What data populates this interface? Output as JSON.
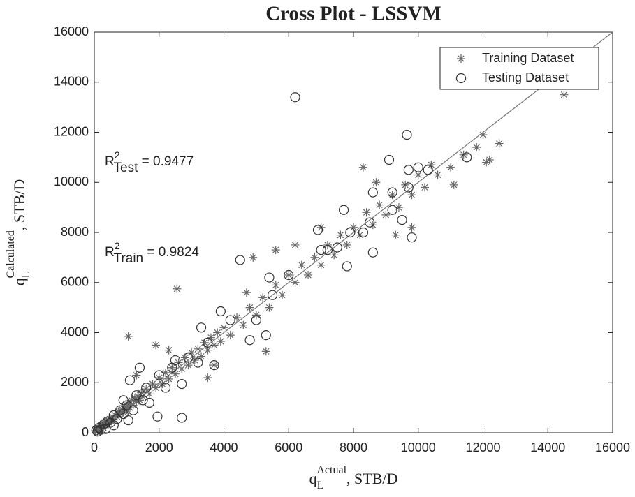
{
  "chart_data": {
    "type": "scatter",
    "title": "Cross Plot - LSSVM",
    "x_label": {
      "base": "q",
      "sub": "L",
      "sup": "Actual",
      "rest": ", STB/D"
    },
    "y_label": {
      "base": "q",
      "sub": "L",
      "sup": "Calculated",
      "rest": ", STB/D"
    },
    "annotations": [
      {
        "base": "R",
        "sup": "2",
        "sub": "Test",
        "rest": " = 0.9477"
      },
      {
        "base": "R",
        "sup": "2",
        "sub": "Train",
        "rest": " = 0.9824"
      }
    ],
    "xlim": [
      0,
      16000
    ],
    "ylim": [
      0,
      16000
    ],
    "xticks": [
      0,
      2000,
      4000,
      6000,
      8000,
      10000,
      12000,
      14000,
      16000
    ],
    "yticks": [
      0,
      2000,
      4000,
      6000,
      8000,
      10000,
      12000,
      14000,
      16000
    ],
    "legend": "northeast",
    "series": [
      {
        "name": "Training Dataset",
        "color": "#666666",
        "marker": "asterisk",
        "x": [
          50,
          80,
          100,
          120,
          150,
          180,
          200,
          220,
          250,
          280,
          300,
          320,
          350,
          380,
          400,
          420,
          450,
          480,
          500,
          550,
          600,
          650,
          700,
          750,
          800,
          850,
          900,
          950,
          1000,
          1050,
          1100,
          1150,
          1200,
          1250,
          1300,
          1350,
          1400,
          1450,
          1500,
          1600,
          1700,
          1800,
          1900,
          2000,
          2100,
          2200,
          2300,
          2400,
          2500,
          2600,
          2700,
          2800,
          2900,
          3000,
          3100,
          3200,
          3300,
          3400,
          3500,
          3600,
          3700,
          3800,
          3900,
          4000,
          4200,
          4400,
          4600,
          4800,
          5000,
          5200,
          5400,
          5600,
          5800,
          6000,
          6200,
          6400,
          6600,
          6800,
          7000,
          7200,
          7400,
          7600,
          7800,
          8000,
          8200,
          8400,
          8600,
          8800,
          9000,
          9200,
          9400,
          9600,
          9800,
          10000,
          10200,
          10400,
          10600,
          11000,
          11400,
          11800,
          12000,
          12200,
          12500,
          14500,
          1050,
          2550,
          1900,
          5300,
          8300,
          3700,
          6200,
          4900,
          9800,
          11100,
          12100,
          5600,
          7000,
          8700,
          9300,
          3500,
          2300,
          4700,
          1300
        ],
        "y": [
          80,
          150,
          60,
          200,
          120,
          250,
          180,
          300,
          230,
          200,
          350,
          400,
          300,
          450,
          380,
          500,
          420,
          550,
          480,
          650,
          520,
          700,
          650,
          850,
          760,
          950,
          820,
          1050,
          920,
          1150,
          1000,
          1300,
          1100,
          1400,
          1250,
          1450,
          1300,
          1600,
          1450,
          1750,
          1550,
          1950,
          1800,
          2200,
          1950,
          2400,
          2150,
          2600,
          2350,
          2800,
          2550,
          3000,
          2700,
          3200,
          2900,
          3350,
          3050,
          3600,
          3300,
          3800,
          3500,
          4000,
          3650,
          4200,
          3900,
          4600,
          4300,
          5000,
          4700,
          5400,
          5000,
          5900,
          5500,
          6300,
          6000,
          6700,
          6300,
          7000,
          6700,
          7500,
          7100,
          7900,
          7500,
          8200,
          7900,
          8800,
          8300,
          9100,
          8700,
          9500,
          9000,
          9900,
          9500,
          10300,
          9800,
          10700,
          10300,
          10600,
          11100,
          11400,
          11900,
          10900,
          11550,
          13500,
          3850,
          5750,
          3500,
          3250,
          10600,
          2700,
          7500,
          7000,
          8200,
          9900,
          10800,
          7300,
          8200,
          10000,
          7900,
          2200,
          3300,
          5600,
          2300
        ]
      },
      {
        "name": "Testing Dataset",
        "color": "#333333",
        "marker": "circle",
        "x": [
          60,
          100,
          150,
          200,
          300,
          350,
          400,
          500,
          600,
          700,
          800,
          900,
          1000,
          1050,
          1100,
          1200,
          1300,
          1400,
          1500,
          1600,
          1700,
          1950,
          2000,
          2200,
          2400,
          2700,
          2700,
          2900,
          3200,
          3500,
          3700,
          3900,
          4200,
          4500,
          4800,
          5000,
          5300,
          5400,
          5500,
          6000,
          6200,
          7000,
          7200,
          7500,
          7700,
          7800,
          7900,
          8300,
          8500,
          8600,
          8600,
          9100,
          9200,
          9200,
          9500,
          9650,
          9700,
          9700,
          9800,
          10000,
          10300,
          11500,
          3300,
          2500,
          6900,
          600,
          900
        ],
        "y": [
          100,
          50,
          200,
          120,
          350,
          150,
          450,
          400,
          700,
          550,
          900,
          750,
          1100,
          500,
          2100,
          900,
          1500,
          2600,
          1300,
          1800,
          1200,
          650,
          2300,
          1800,
          2600,
          600,
          1950,
          3000,
          2800,
          3600,
          2700,
          4850,
          4500,
          6900,
          3700,
          4500,
          3900,
          6200,
          5500,
          6300,
          13400,
          7300,
          7300,
          7400,
          8900,
          6650,
          8000,
          8000,
          8400,
          7200,
          9600,
          10900,
          8900,
          9600,
          8500,
          11900,
          10500,
          9800,
          7800,
          10600,
          10500,
          11000,
          4200,
          2900,
          8100,
          300,
          1300
        ]
      }
    ]
  }
}
